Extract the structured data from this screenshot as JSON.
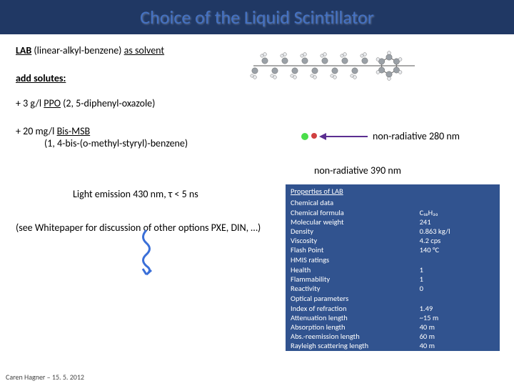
{
  "title": "Choice of the Liquid Scintillator",
  "solvent_line": {
    "abbr": "LAB",
    "full": " (linear-alkyl-benzene) ",
    "suffix": "as solvent"
  },
  "solutes_label": "add solutes:",
  "ppo": {
    "prefix": "+ 3 g/l ",
    "abbr": "PPO",
    "full": " (2, 5-diphenyl-oxazole)"
  },
  "bis": {
    "prefix": "+ 20 mg/l ",
    "abbr": "Bis-MSB",
    "full": "(1, 4-bis-(o-methyl-styryl)-benzene)"
  },
  "nr1": "non-radiative 280 nm",
  "nr2": "non-radiative 390 nm",
  "emission": "Light emission 430 nm, τ < 5 ns",
  "whitepaper": "(see Whitepaper for discussion of other options  PXE, DIN, …)",
  "footer": "Caren Hagner – 15. 5. 2012",
  "table": {
    "header": "Properties of LAB",
    "sections": [
      {
        "title": "Chemical data",
        "rows": [
          {
            "k": "Chemical formula",
            "v": "C₁₈H₃₀"
          },
          {
            "k": "Molecular weight",
            "v": "241"
          },
          {
            "k": "Density",
            "v": "0.863 kg/l"
          },
          {
            "k": "Viscosity",
            "v": "4.2 cps"
          },
          {
            "k": "Flash Point",
            "v": "140 °C"
          }
        ]
      },
      {
        "title": "HMIS ratings",
        "rows": [
          {
            "k": "Health",
            "v": "1"
          },
          {
            "k": "Flammability",
            "v": "1"
          },
          {
            "k": "Reactivity",
            "v": "0"
          }
        ]
      },
      {
        "title": "Optical parameters",
        "rows": [
          {
            "k": "Index of refraction",
            "v": "1.49"
          },
          {
            "k": "Attenuation length",
            "v": "~15 m"
          },
          {
            "k": "Absorption length",
            "v": "40 m"
          },
          {
            "k": "Abs.-reemission length",
            "v": "60 m"
          },
          {
            "k": "Rayleigh scattering length",
            "v": "40 m"
          }
        ]
      }
    ]
  },
  "molecule": {
    "grey": "#9aa0a6",
    "white": "#e8eaed",
    "red": "#d04040"
  }
}
